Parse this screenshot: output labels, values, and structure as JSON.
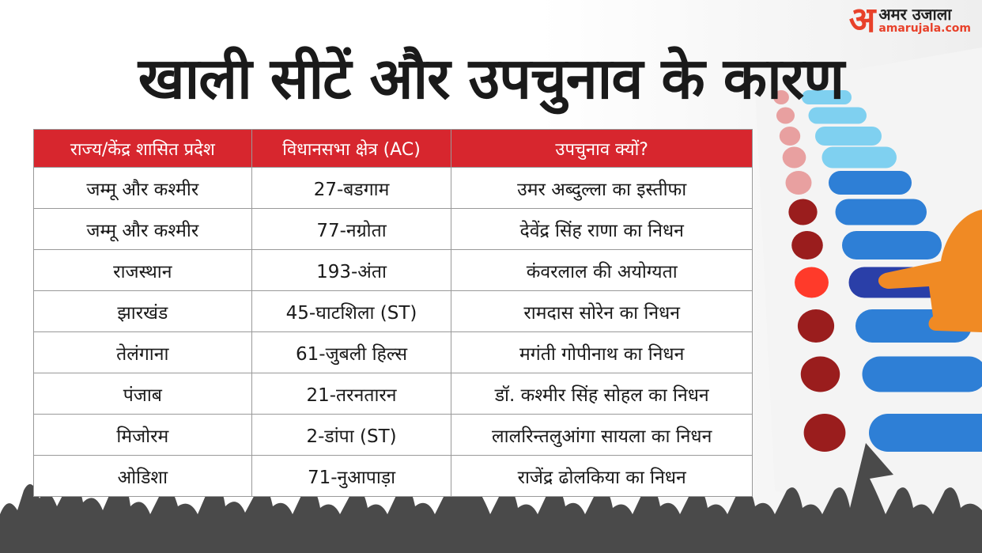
{
  "logo": {
    "mark": "अ",
    "name": "अमर उजाला",
    "site": "amarujala.com"
  },
  "header": {
    "title": "खाली सीटें और उपचुनाव के कारण"
  },
  "table": {
    "columns": [
      "राज्य/केंद्र शासित प्रदेश",
      "विधानसभा क्षेत्र (AC)",
      "उपचुनाव क्यों?"
    ],
    "rows": [
      [
        "जम्मू और कश्मीर",
        "27-बडगाम",
        "उमर अब्दुल्ला का इस्तीफा"
      ],
      [
        "जम्मू और कश्मीर",
        "77-नग्रोता",
        "देवेंद्र सिंह राणा का निधन"
      ],
      [
        "राजस्थान",
        "193-अंता",
        "कंवरलाल की अयोग्यता"
      ],
      [
        "झारखंड",
        "45-घाटशिला (ST)",
        "रामदास सोरेन का निधन"
      ],
      [
        "तेलंगाना",
        "61-जुबली हिल्स",
        "मगंती गोपीनाथ का निधन"
      ],
      [
        "पंजाब",
        "21-तरनतारन",
        "डॉ. कश्मीर सिंह सोहल का निधन"
      ],
      [
        "मिजोरम",
        "2-डांपा (ST)",
        "लालरिन्तलुआंगा सायला का निधन"
      ],
      [
        "ओडिशा",
        "71-नुआपाड़ा",
        "राजेंद्र ढोलकिया का निधन"
      ]
    ]
  }
}
